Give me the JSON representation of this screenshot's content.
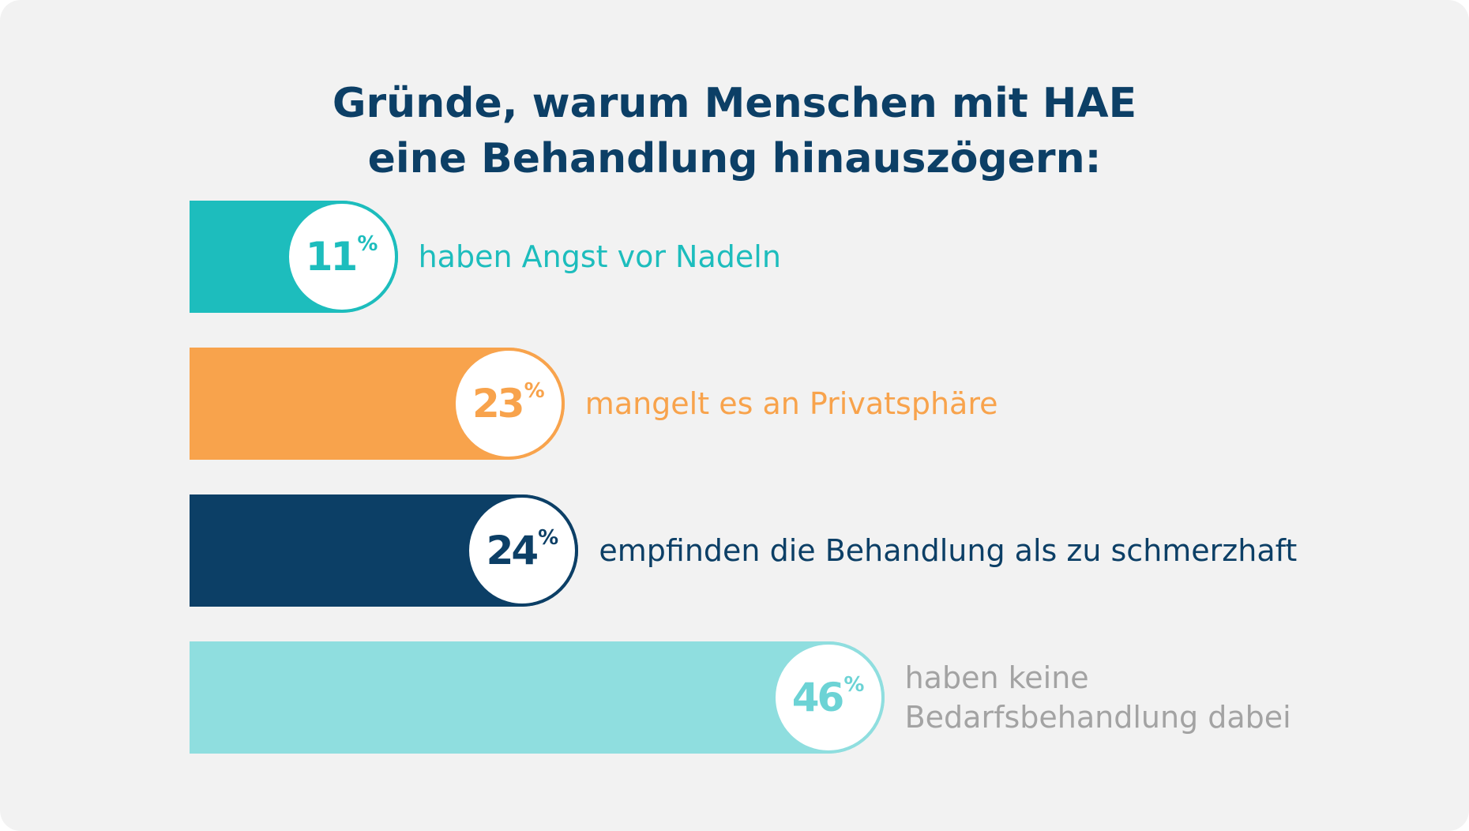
{
  "chart_data": {
    "type": "bar",
    "orientation": "horizontal",
    "title_lines": [
      "Gründe, warum Menschen mit HAE",
      "eine Behandlung hinauszögern:"
    ],
    "unit": "%",
    "xlim": [
      0,
      50
    ],
    "grid": false,
    "bars": [
      {
        "value": 11,
        "value_label": "11",
        "label_lines": [
          "haben Angst vor Nadeln"
        ],
        "color": "#1dbdbd",
        "text_color": "#1dbdbd"
      },
      {
        "value": 23,
        "value_label": "23",
        "label_lines": [
          "mangelt es an Privatsphäre"
        ],
        "color": "#f8a34c",
        "text_color": "#f8a34c"
      },
      {
        "value": 24,
        "value_label": "24",
        "label_lines": [
          "empfinden die Behandlung als zu schmerzhaft"
        ],
        "color": "#0c3f66",
        "text_color": "#0c3f66"
      },
      {
        "value": 46,
        "value_label": "46",
        "label_lines": [
          "haben keine",
          "Bedarfsbehandlung dabei"
        ],
        "color": "#8fdedf",
        "text_color": "#a3a3a3",
        "number_color": "#6cd3d5"
      }
    ]
  }
}
